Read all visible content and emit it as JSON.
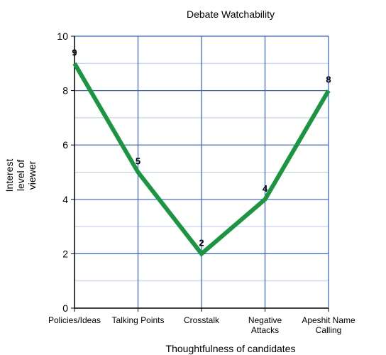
{
  "chart_data": {
    "type": "line",
    "title": "Debate Watchability",
    "xlabel": "Thoughtfulness of candidates",
    "ylabel": [
      "Interest",
      "level of",
      "viewer"
    ],
    "categories": [
      [
        "Policies/Ideas"
      ],
      [
        "Talking Points"
      ],
      [
        "Crosstalk"
      ],
      [
        "Negative",
        "Attacks"
      ],
      [
        "Apeshit Name",
        "Calling"
      ]
    ],
    "values": [
      9,
      5,
      2,
      4,
      8
    ],
    "data_labels": [
      "9",
      "5",
      "2",
      "4",
      "8"
    ],
    "ylim": [
      0,
      10
    ],
    "yticks": [
      0,
      2,
      4,
      6,
      8,
      10
    ],
    "ytick_labels": [
      "0",
      "2",
      "4",
      "6",
      "8",
      "10"
    ],
    "grid": true,
    "colors": {
      "line": "#1a9641",
      "grid_major": "#2f5fd0",
      "grid_minor": "#b7c8f0",
      "axis": "#000000"
    }
  }
}
